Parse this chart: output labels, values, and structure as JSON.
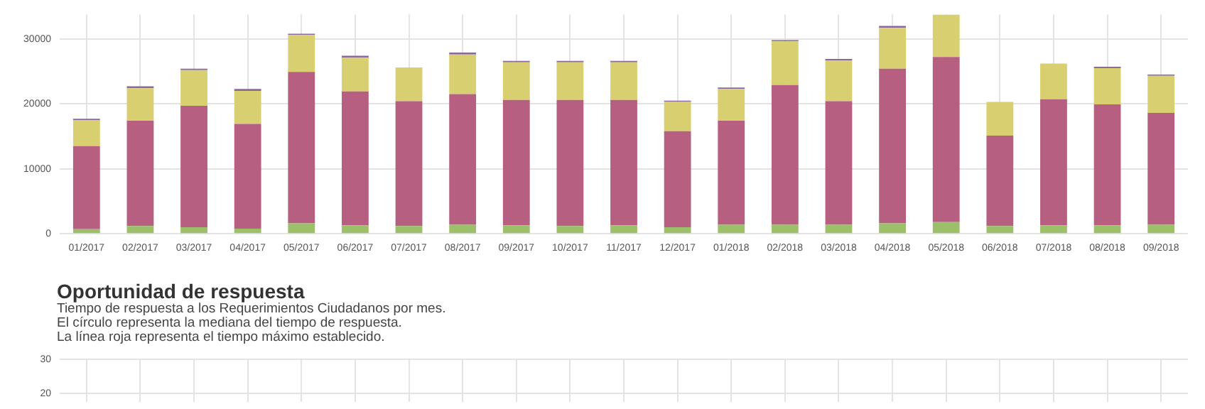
{
  "chart_data": [
    {
      "type": "bar",
      "stacked": true,
      "grid": true,
      "legend": false,
      "categories": [
        "01/2017",
        "02/2017",
        "03/2017",
        "04/2017",
        "05/2017",
        "06/2017",
        "07/2017",
        "08/2017",
        "09/2017",
        "10/2017",
        "11/2017",
        "12/2017",
        "01/2018",
        "02/2018",
        "03/2018",
        "04/2018",
        "05/2018",
        "06/2018",
        "07/2018",
        "08/2018",
        "09/2018"
      ],
      "series": [
        {
          "color": "#9cc069",
          "values": [
            700,
            1200,
            1000,
            800,
            1600,
            1300,
            1200,
            1400,
            1300,
            1200,
            1300,
            1000,
            1400,
            1400,
            1400,
            1600,
            1800,
            1200,
            1300,
            1300,
            1400
          ]
        },
        {
          "color": "#b75f80",
          "values": [
            12800,
            16200,
            18700,
            16100,
            23300,
            20600,
            19200,
            20100,
            19300,
            19400,
            19300,
            14800,
            16000,
            21500,
            19000,
            23800,
            25400,
            13900,
            19400,
            18600,
            17200
          ]
        },
        {
          "color": "#d8d070",
          "values": [
            4000,
            5000,
            5500,
            5100,
            5700,
            5200,
            5200,
            6100,
            5800,
            5800,
            5800,
            4500,
            4900,
            6700,
            6300,
            6300,
            6550,
            5200,
            5500,
            5600,
            5700
          ]
        },
        {
          "color": "#8a6a9e",
          "values": [
            200,
            300,
            200,
            300,
            200,
            300,
            null,
            300,
            200,
            200,
            200,
            200,
            200,
            200,
            200,
            300,
            null,
            null,
            null,
            200,
            200
          ]
        }
      ],
      "ylim": [
        0,
        33750
      ],
      "yticks": [
        0,
        10000,
        20000,
        30000
      ]
    },
    {
      "type": "scatter",
      "title": "Oportunidad de respuesta",
      "subtitle": "Tiempo de respuesta a los Requerimientos Ciudadanos por mes.\nEl círculo representa la mediana del tiempo de respuesta.\nLa línea roja representa el tiempo máximo establecido.",
      "categories": [
        null,
        null,
        null,
        null,
        null,
        null,
        null,
        null,
        null,
        null,
        null,
        null,
        null,
        null,
        null,
        null,
        null,
        null,
        null,
        null,
        null
      ],
      "grid": true,
      "legend": false,
      "tick_labels": "y",
      "ylim": [
        17.5,
        30
      ],
      "yticks": [
        20,
        30
      ]
    }
  ]
}
